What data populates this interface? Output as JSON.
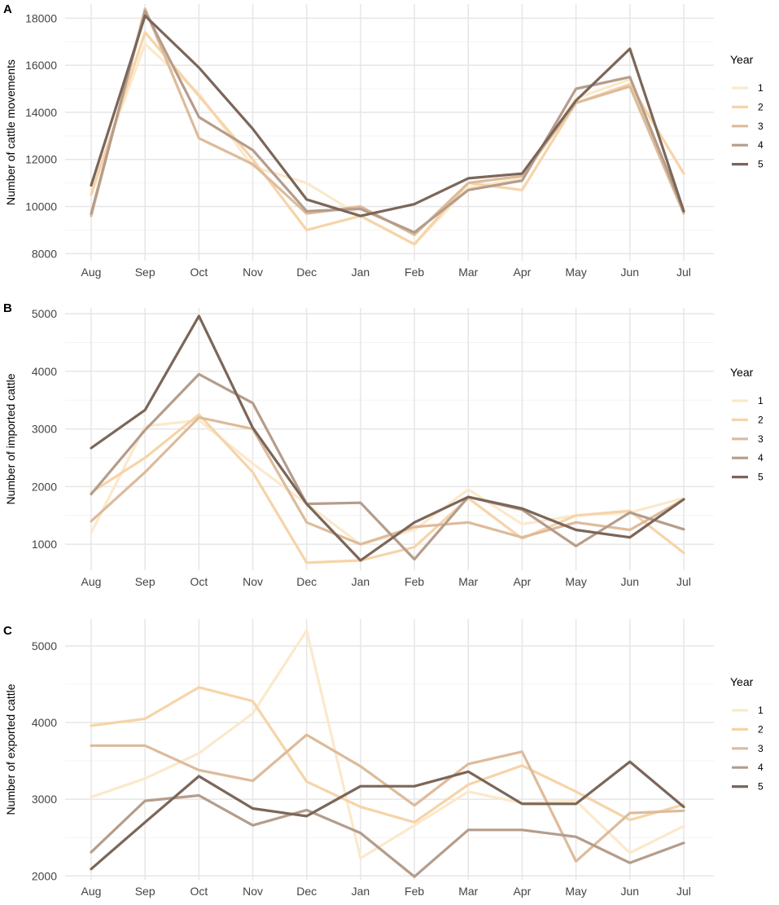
{
  "chart_data": [
    {
      "type": "line",
      "panel_label": "A",
      "title": "",
      "xlabel": "",
      "ylabel": "Number of cattle movements",
      "categories": [
        "Aug",
        "Sep",
        "Oct",
        "Nov",
        "Dec",
        "Jan",
        "Feb",
        "Mar",
        "Apr",
        "May",
        "Jun",
        "Jul"
      ],
      "ylim": [
        7700,
        18600
      ],
      "yticks": [
        8000,
        10000,
        12000,
        14000,
        16000,
        18000
      ],
      "legend": {
        "title": "Year",
        "position": "right"
      },
      "series": [
        {
          "name": "1",
          "color": "#fbe9cc",
          "values": [
            10700,
            16900,
            14800,
            11700,
            11000,
            9600,
            8400,
            10800,
            11200,
            14600,
            15400,
            9800
          ]
        },
        {
          "name": "2",
          "color": "#f6d4a8",
          "values": [
            10500,
            17400,
            14700,
            12000,
            9000,
            9600,
            8400,
            11000,
            10700,
            14400,
            15200,
            11400
          ]
        },
        {
          "name": "3",
          "color": "#ddbb9b",
          "values": [
            9600,
            18400,
            12900,
            11800,
            9700,
            10000,
            8800,
            11000,
            11300,
            14400,
            15100,
            9700
          ]
        },
        {
          "name": "4",
          "color": "#b59d8b",
          "values": [
            9700,
            18300,
            13800,
            12400,
            9800,
            9900,
            8900,
            10700,
            11100,
            15000,
            15500,
            9800
          ]
        },
        {
          "name": "5",
          "color": "#7b6659",
          "values": [
            10900,
            18100,
            15900,
            13300,
            10300,
            9600,
            10100,
            11200,
            11400,
            14500,
            16700,
            9800
          ]
        }
      ]
    },
    {
      "type": "line",
      "panel_label": "B",
      "title": "",
      "xlabel": "",
      "ylabel": "Number of imported cattle",
      "categories": [
        "Aug",
        "Sep",
        "Oct",
        "Nov",
        "Dec",
        "Jan",
        "Feb",
        "Mar",
        "Apr",
        "May",
        "Jun",
        "Jul"
      ],
      "ylim": [
        550,
        5100
      ],
      "yticks": [
        1000,
        2000,
        3000,
        4000,
        5000
      ],
      "legend": {
        "title": "Year",
        "position": "right"
      },
      "series": [
        {
          "name": "1",
          "color": "#fbe9cc",
          "values": [
            1200,
            3050,
            3150,
            2400,
            1700,
            1000,
            1250,
            1950,
            1350,
            1500,
            1550,
            1800
          ]
        },
        {
          "name": "2",
          "color": "#f6d4a8",
          "values": [
            1900,
            2500,
            3250,
            2250,
            680,
            720,
            950,
            1800,
            1100,
            1500,
            1580,
            850
          ]
        },
        {
          "name": "3",
          "color": "#ddbb9b",
          "values": [
            1400,
            2250,
            3200,
            3000,
            1380,
            1000,
            1300,
            1380,
            1120,
            1380,
            1250,
            1780
          ]
        },
        {
          "name": "4",
          "color": "#b59d8b",
          "values": [
            1870,
            2980,
            3950,
            3450,
            1700,
            1720,
            740,
            1820,
            1600,
            970,
            1550,
            1260
          ]
        },
        {
          "name": "5",
          "color": "#7b6659",
          "values": [
            2670,
            3330,
            4960,
            3020,
            1700,
            720,
            1380,
            1820,
            1620,
            1250,
            1120,
            1780
          ]
        }
      ]
    },
    {
      "type": "line",
      "panel_label": "C",
      "title": "",
      "xlabel": "",
      "ylabel": "Number of exported cattle",
      "categories": [
        "Aug",
        "Sep",
        "Oct",
        "Nov",
        "Dec",
        "Jan",
        "Feb",
        "Mar",
        "Apr",
        "May",
        "Jun",
        "Jul"
      ],
      "ylim": [
        1950,
        5350
      ],
      "yticks": [
        2000,
        3000,
        4000,
        5000
      ],
      "legend": {
        "title": "Year",
        "position": "right"
      },
      "series": [
        {
          "name": "1",
          "color": "#fbe9cc",
          "values": [
            3030,
            3270,
            3600,
            4120,
            5200,
            2230,
            2660,
            3100,
            2950,
            2980,
            2300,
            2650
          ]
        },
        {
          "name": "2",
          "color": "#f6d4a8",
          "values": [
            3960,
            4050,
            4460,
            4280,
            3230,
            2900,
            2700,
            3190,
            3440,
            3100,
            2730,
            2930
          ]
        },
        {
          "name": "3",
          "color": "#ddbb9b",
          "values": [
            3700,
            3700,
            3380,
            3240,
            3840,
            3430,
            2920,
            3460,
            3620,
            2190,
            2820,
            2850
          ]
        },
        {
          "name": "4",
          "color": "#b59d8b",
          "values": [
            2310,
            2980,
            3050,
            2660,
            2860,
            2560,
            1990,
            2600,
            2600,
            2510,
            2170,
            2430
          ]
        },
        {
          "name": "5",
          "color": "#7b6659",
          "values": [
            2090,
            2700,
            3300,
            2880,
            2780,
            3170,
            3170,
            3360,
            2940,
            2940,
            3490,
            2900
          ]
        }
      ]
    }
  ]
}
